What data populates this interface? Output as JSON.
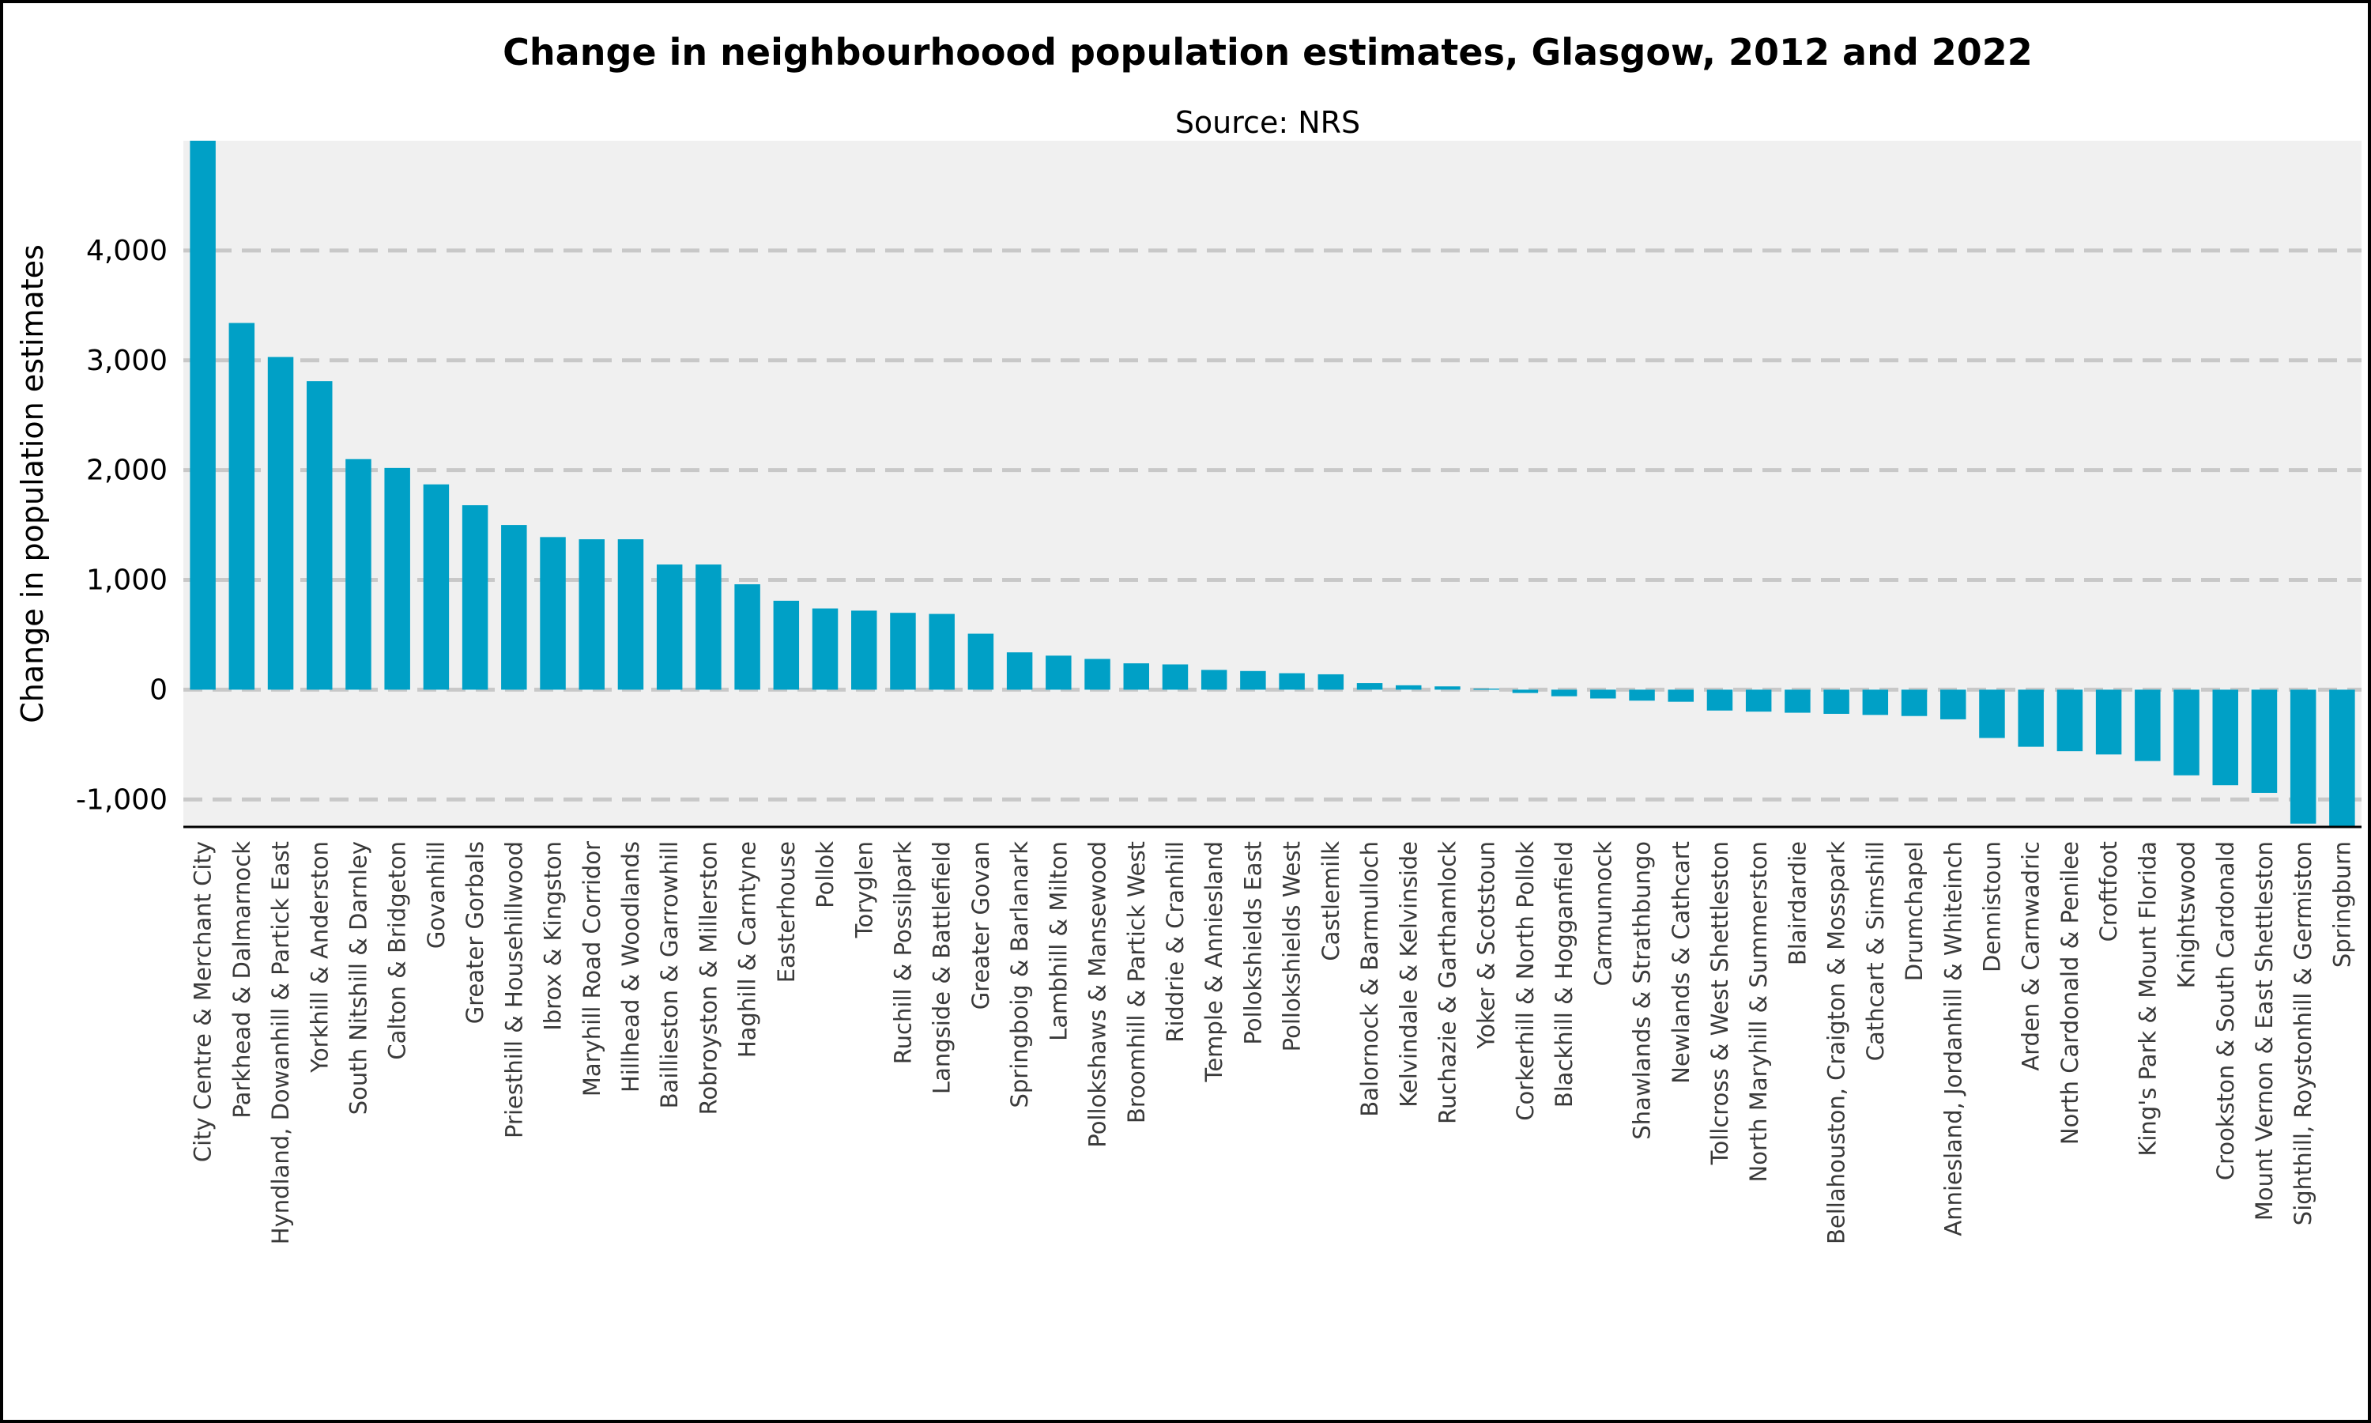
{
  "chart_data": {
    "type": "bar",
    "title": "Change in neighbourhoood population estimates, Glasgow, 2012 and 2022",
    "subtitle": "Source: NRS",
    "xlabel": "",
    "ylabel": "Change in population estimates",
    "ylim": [
      -1250,
      5000
    ],
    "yticks": [
      -1000,
      0,
      1000,
      2000,
      3000,
      4000
    ],
    "ytick_labels": [
      "-1,000",
      "0",
      "1,000",
      "2,000",
      "3,000",
      "4,000"
    ],
    "grid": true,
    "bar_color": "#00a0c6",
    "categories": [
      "City Centre & Merchant City",
      "Parkhead & Dalmarnock",
      "Hyndland, Dowanhill & Partick East",
      "Yorkhill & Anderston",
      "South Nitshill & Darnley",
      "Calton & Bridgeton",
      "Govanhill",
      "Greater Gorbals",
      "Priesthill & Househillwood",
      "Ibrox & Kingston",
      "Maryhill Road Corridor",
      "Hillhead & Woodlands",
      "Baillieston & Garrowhill",
      "Robroyston & Millerston",
      "Haghill & Carntyne",
      "Easterhouse",
      "Pollok",
      "Toryglen",
      "Ruchill & Possilpark",
      "Langside & Battlefield",
      "Greater Govan",
      "Springboig & Barlanark",
      "Lambhill & Milton",
      "Pollokshaws & Mansewood",
      "Broomhill & Partick West",
      "Riddrie & Cranhill",
      "Temple & Anniesland",
      "Pollokshields East",
      "Pollokshields West",
      "Castlemilk",
      "Balornock & Barmulloch",
      "Kelvindale & Kelvinside",
      "Ruchazie & Garthamlock",
      "Yoker & Scotstoun",
      "Corkerhill & North Pollok",
      "Blackhill & Hogganfield",
      "Carmunnock",
      "Shawlands & Strathbungo",
      "Newlands & Cathcart",
      "Tollcross & West Shettleston",
      "North Maryhill & Summerston",
      "Blairdardie",
      "Bellahouston, Craigton & Mosspark",
      "Cathcart & Simshill",
      "Drumchapel",
      "Anniesland, Jordanhill & Whiteinch",
      "Dennistoun",
      "Arden & Carnwadric",
      "North Cardonald & Penilee",
      "Croftfoot",
      "King's Park & Mount Florida",
      "Knightswood",
      "Crookston & South Cardonald",
      "Mount Vernon & East Shettleston",
      "Sighthill, Roystonhill & Germiston",
      "Springburn"
    ],
    "values": [
      5000,
      3340,
      3030,
      2810,
      2100,
      2020,
      1870,
      1680,
      1500,
      1390,
      1370,
      1370,
      1140,
      1140,
      960,
      810,
      740,
      720,
      700,
      690,
      510,
      340,
      310,
      280,
      240,
      230,
      180,
      170,
      150,
      140,
      60,
      40,
      30,
      10,
      -30,
      -60,
      -80,
      -100,
      -110,
      -190,
      -200,
      -210,
      -220,
      -230,
      -240,
      -270,
      -440,
      -520,
      -560,
      -590,
      -650,
      -780,
      -870,
      -940,
      -1220,
      -1250
    ]
  }
}
